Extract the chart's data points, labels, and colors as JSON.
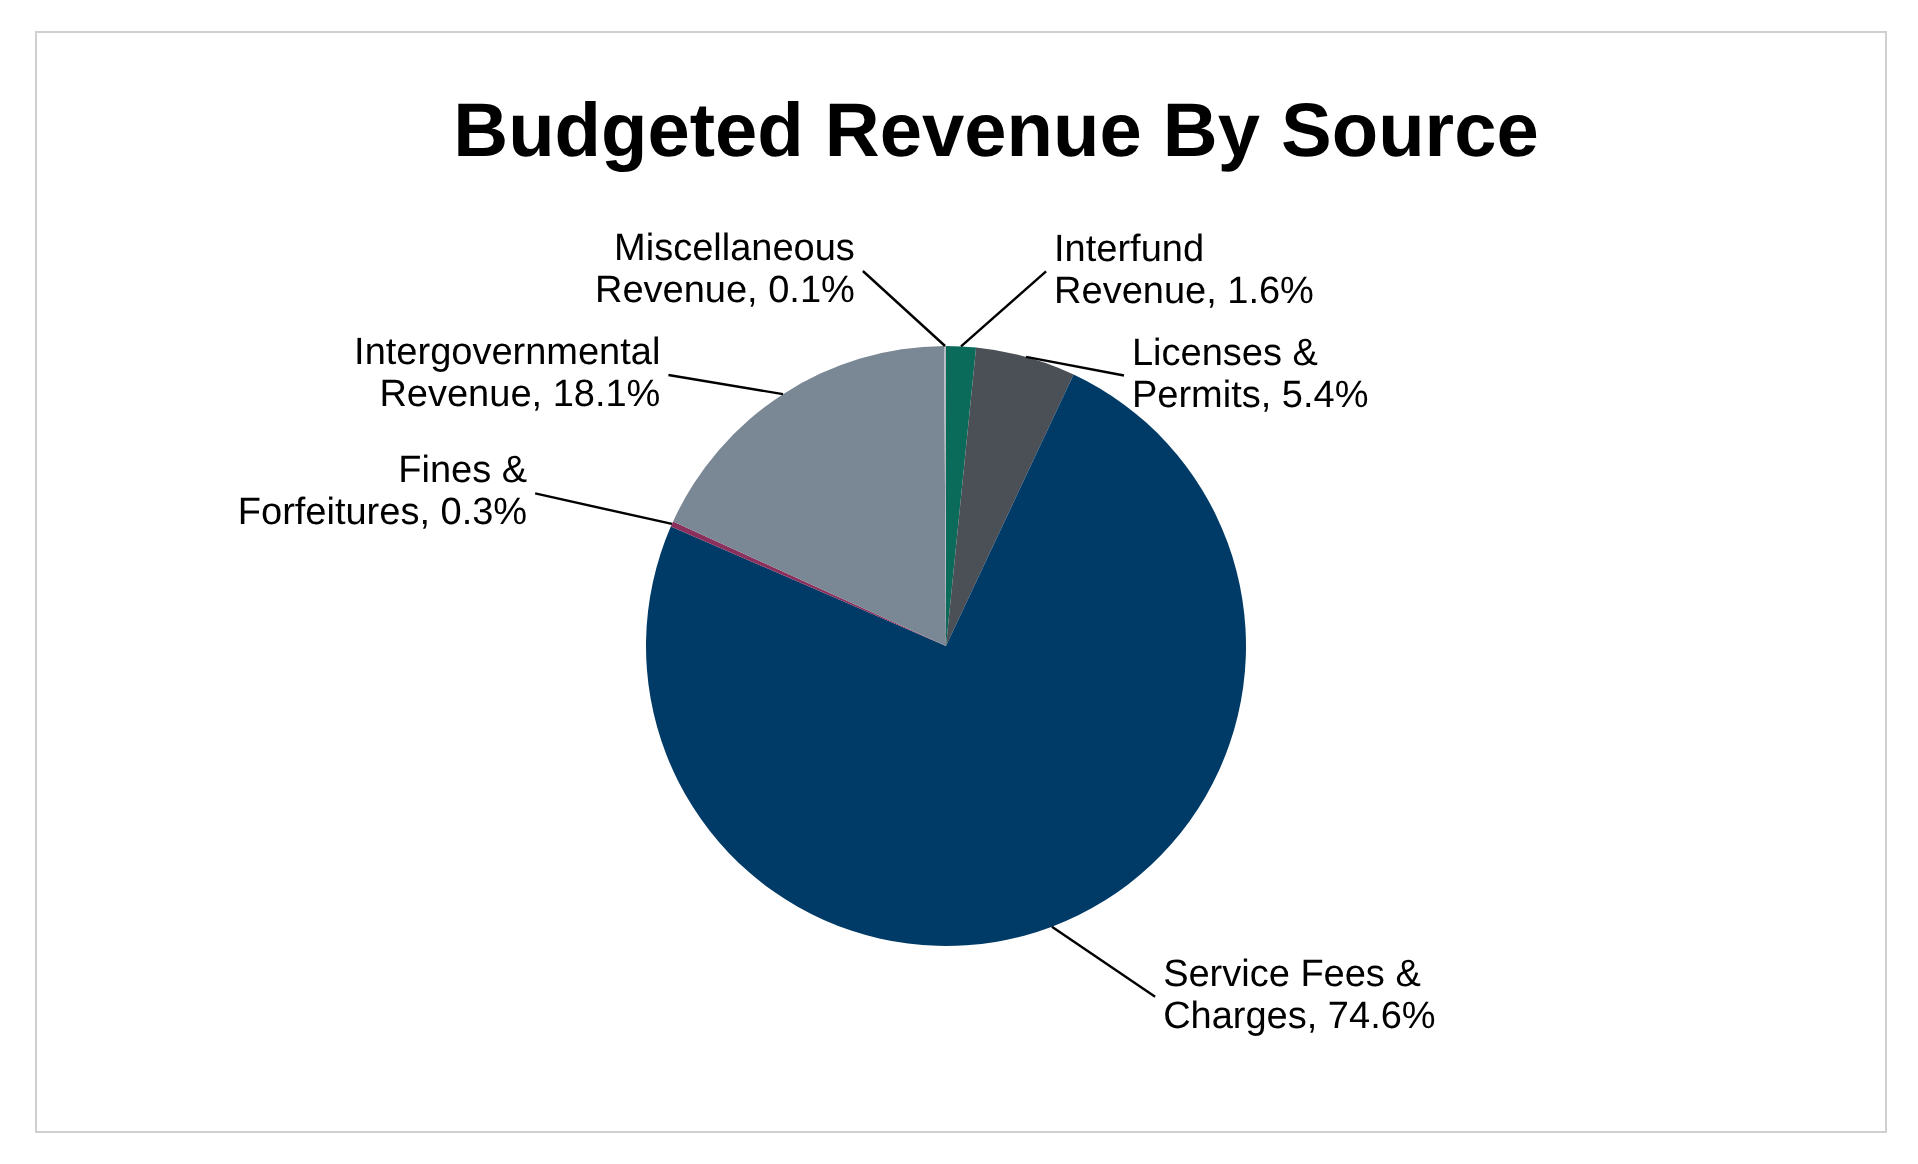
{
  "chart_data": {
    "type": "pie",
    "title": "Budgeted Revenue By Source",
    "categories": [
      "Interfund Revenue",
      "Licenses & Permits",
      "Service Fees & Charges",
      "Fines & Forfeitures",
      "Intergovernmental Revenue",
      "Miscellaneous Revenue"
    ],
    "values": [
      1.6,
      5.4,
      74.6,
      0.3,
      18.1,
      0.1
    ],
    "value_labels": [
      "1.6%",
      "5.4%",
      "74.6%",
      "0.3%",
      "18.1%",
      "0.1%"
    ],
    "colors": [
      "#0b6b5a",
      "#4b5057",
      "#003a66",
      "#8b2f5c",
      "#7a8794",
      "#b0b8c0"
    ]
  }
}
